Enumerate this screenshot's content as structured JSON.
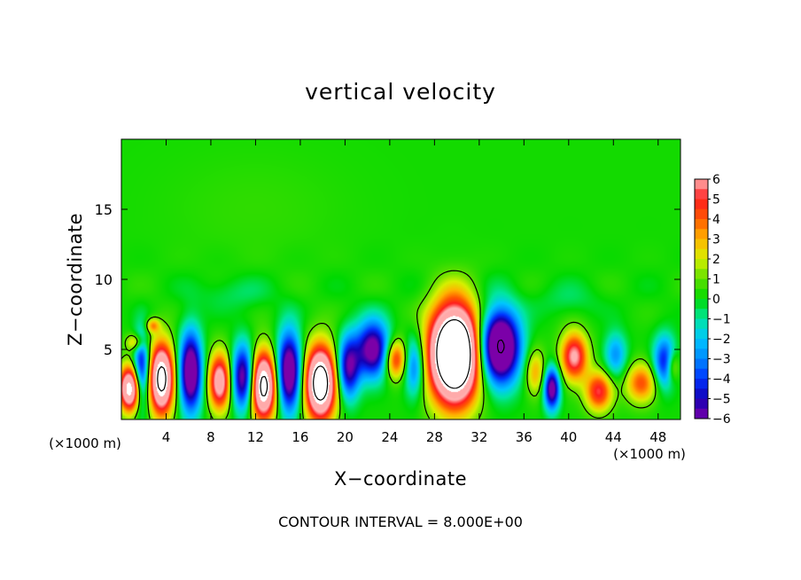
{
  "chart_data": {
    "type": "heatmap",
    "title": "vertical velocity",
    "xlabel": "X−coordinate",
    "ylabel": "Z−coordinate",
    "x_unit_left": "(×1000 m)",
    "x_unit_right": "(×1000 m)",
    "footer": "CONTOUR INTERVAL = 8.000E+00",
    "xlim": [
      0,
      50
    ],
    "ylim": [
      0,
      20
    ],
    "x_ticks": [
      4,
      8,
      12,
      16,
      20,
      24,
      28,
      32,
      36,
      40,
      44,
      48
    ],
    "x_tick_labels": [
      "4",
      "8",
      "12",
      "16",
      "20",
      "24",
      "28",
      "32",
      "36",
      "40",
      "44",
      "48"
    ],
    "y_ticks": [
      5,
      10,
      15
    ],
    "y_tick_labels": [
      "5",
      "10",
      "15"
    ],
    "colorbar": {
      "range": [
        -6,
        6
      ],
      "ticks": [
        6,
        5,
        4,
        3,
        2,
        1,
        0,
        -1,
        -2,
        -3,
        -4,
        -5,
        -6
      ],
      "tick_labels": [
        "6",
        "5",
        "4",
        "3",
        "2",
        "1",
        "0",
        "−1",
        "−2",
        "−3",
        "−4",
        "−5",
        "−6"
      ]
    },
    "background_value": 0.2,
    "features": [
      {
        "x": 0.8,
        "z": 2.2,
        "sx": 1.0,
        "sz": 1.6,
        "a": 9
      },
      {
        "x": 1.3,
        "z": 5.5,
        "sx": 0.8,
        "sz": 0.6,
        "a": 3
      },
      {
        "x": 2.8,
        "z": 6.7,
        "sx": 0.6,
        "sz": 0.5,
        "a": 3
      },
      {
        "x": 1.8,
        "z": 3.4,
        "sx": 0.7,
        "sz": 2.6,
        "a": -6
      },
      {
        "x": 3.6,
        "z": 2.9,
        "sx": 1.1,
        "sz": 2.5,
        "a": 10
      },
      {
        "x": 6.2,
        "z": 3.4,
        "sx": 1.0,
        "sz": 2.8,
        "a": -8
      },
      {
        "x": 8.8,
        "z": 2.7,
        "sx": 1.0,
        "sz": 2.0,
        "a": 7
      },
      {
        "x": 10.9,
        "z": 3.0,
        "sx": 1.0,
        "sz": 2.3,
        "a": -7
      },
      {
        "x": 12.7,
        "z": 2.4,
        "sx": 1.2,
        "sz": 2.4,
        "a": 10
      },
      {
        "x": 15.0,
        "z": 3.4,
        "sx": 1.1,
        "sz": 2.8,
        "a": -8
      },
      {
        "x": 17.8,
        "z": 2.6,
        "sx": 1.4,
        "sz": 2.6,
        "a": 11
      },
      {
        "x": 20.3,
        "z": 3.7,
        "sx": 1.0,
        "sz": 2.2,
        "a": -6
      },
      {
        "x": 22.5,
        "z": 5.0,
        "sx": 1.5,
        "sz": 2.0,
        "a": -7
      },
      {
        "x": 24.5,
        "z": 4.3,
        "sx": 1.0,
        "sz": 1.4,
        "a": 5
      },
      {
        "x": 26.2,
        "z": 3.8,
        "sx": 0.9,
        "sz": 2.1,
        "a": -4
      },
      {
        "x": 29.8,
        "z": 4.7,
        "sx": 2.2,
        "sz": 3.4,
        "a": 15
      },
      {
        "x": 33.8,
        "z": 5.2,
        "sx": 1.8,
        "sz": 2.6,
        "a": -10
      },
      {
        "x": 37.0,
        "z": 3.4,
        "sx": 0.9,
        "sz": 1.6,
        "a": 3
      },
      {
        "x": 38.5,
        "z": 2.2,
        "sx": 0.7,
        "sz": 1.5,
        "a": -7
      },
      {
        "x": 40.5,
        "z": 4.5,
        "sx": 1.2,
        "sz": 1.7,
        "a": 6
      },
      {
        "x": 42.7,
        "z": 2.0,
        "sx": 1.2,
        "sz": 1.4,
        "a": 5
      },
      {
        "x": 44.2,
        "z": 4.6,
        "sx": 1.0,
        "sz": 1.6,
        "a": -3
      },
      {
        "x": 46.5,
        "z": 2.6,
        "sx": 1.4,
        "sz": 1.4,
        "a": 4
      },
      {
        "x": 48.6,
        "z": 4.1,
        "sx": 1.0,
        "sz": 1.8,
        "a": -5
      },
      {
        "x": 49.3,
        "z": 3.8,
        "sx": 0.6,
        "sz": 1.1,
        "a": 3
      },
      {
        "x": 10.0,
        "z": 9.0,
        "sx": 3.5,
        "sz": 1.2,
        "a": -0.8
      },
      {
        "x": 40.0,
        "z": 8.5,
        "sx": 3.0,
        "sz": 1.2,
        "a": -0.7
      },
      {
        "x": 12.0,
        "z": 15.0,
        "sx": 8.0,
        "sz": 4.0,
        "a": 0.3
      }
    ],
    "contour_level": 1.0
  }
}
